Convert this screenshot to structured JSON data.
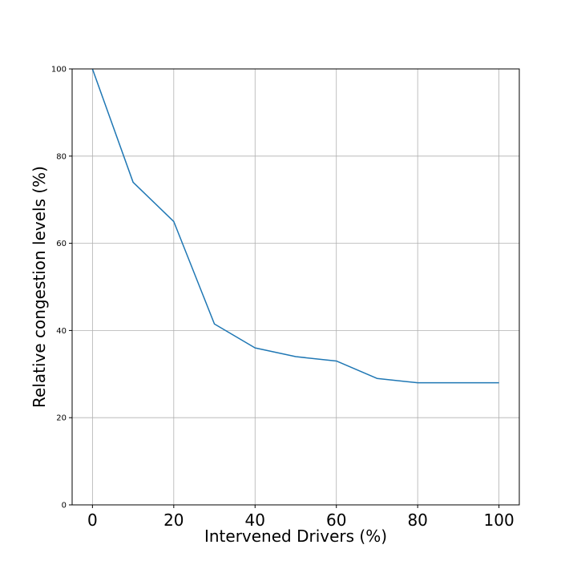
{
  "chart_data": {
    "type": "line",
    "title": "",
    "xlabel": "Intervened Drivers (%)",
    "ylabel": "Relative congestion levels (%)",
    "xlim": [
      -5,
      105
    ],
    "ylim": [
      0,
      100
    ],
    "xticks": [
      0,
      20,
      40,
      60,
      80,
      100
    ],
    "xtick_labels": [
      "0",
      "20",
      "40",
      "60",
      "80",
      "100"
    ],
    "yticks": [
      0,
      20,
      40,
      60,
      80,
      100
    ],
    "ytick_labels": [
      "0",
      "20",
      "40",
      "60",
      "80",
      "100"
    ],
    "grid": true,
    "legend": "none",
    "series": [
      {
        "color": "#1f77b4",
        "x": [
          0,
          10,
          20,
          30,
          40,
          50,
          60,
          70,
          80,
          90,
          100
        ],
        "y": [
          100,
          74,
          65,
          41.5,
          36,
          34,
          33,
          29,
          28,
          28,
          28
        ]
      }
    ]
  }
}
